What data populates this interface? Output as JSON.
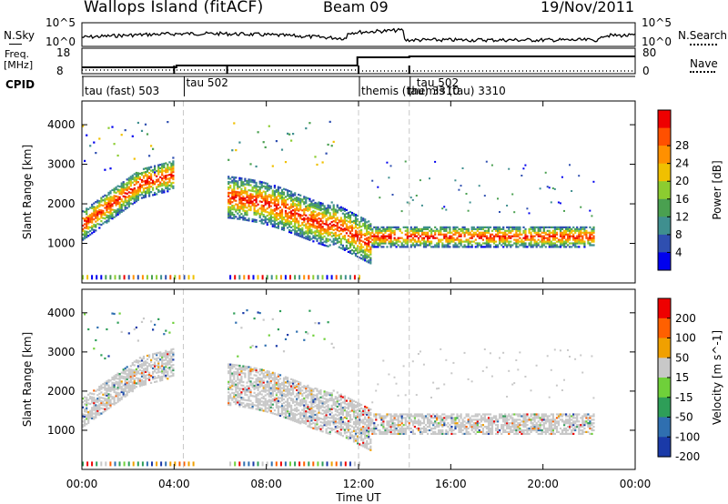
{
  "header": {
    "site": "Wallops Island (fitACF)",
    "beam": "Beam 09",
    "date": "19/Nov/2011"
  },
  "top_panels": {
    "nsky_label": "N.Sky",
    "nsearch_label": "N.Search",
    "noise_ticks": [
      "10^5",
      "10^0"
    ],
    "freq_label_1": "Freq.",
    "freq_label_2": "[MHz]",
    "freq_ticks": [
      "18",
      "8"
    ],
    "nave_ticks": [
      "80",
      "0"
    ],
    "nave_label": "Nave",
    "cpid_label": "CPID",
    "cpid_segments": [
      {
        "label": "tau (fast) 503"
      },
      {
        "label": "tau 502"
      },
      {
        "label": "themis (tau) 3310"
      },
      {
        "label": "tau 502"
      },
      {
        "label": "themis (tau) 3310"
      }
    ]
  },
  "chart_data": [
    {
      "type": "heatmap",
      "name": "power",
      "ylabel": "Slant Range [km]",
      "ylim": [
        0,
        4600
      ],
      "yticks": [
        "1000",
        "2000",
        "3000",
        "4000"
      ],
      "colorbar_label": "Power [dB]",
      "colorbar_ticks": [
        "4",
        "8",
        "12",
        "16",
        "20",
        "24",
        "28"
      ],
      "colors": [
        "#0000ee",
        "#2f4fb0",
        "#3f8f8f",
        "#4aa050",
        "#8ccc30",
        "#f0c000",
        "#ff9000",
        "#ff5000",
        "#ee0000"
      ]
    },
    {
      "type": "heatmap",
      "name": "velocity",
      "ylabel": "Slant Range [km]",
      "ylim": [
        0,
        4600
      ],
      "yticks": [
        "1000",
        "2000",
        "3000",
        "4000"
      ],
      "colorbar_label": "Velocity [m s^-1]",
      "colorbar_ticks": [
        "200",
        "100",
        "50",
        "15",
        "-15",
        "-50",
        "-100",
        "-200"
      ],
      "colors": [
        "#1a3aa8",
        "#2f6fb0",
        "#2e9e58",
        "#6fd03a",
        "#c8c8c8",
        "#f0a000",
        "#ff6000",
        "#ee0000"
      ]
    }
  ],
  "x_axis": {
    "label": "Time UT",
    "ticks": [
      "00:00",
      "04:00",
      "08:00",
      "12:00",
      "16:00",
      "20:00",
      "00:00"
    ],
    "range_hours": [
      0,
      24
    ]
  },
  "colors": {
    "low_quality_band": "#7e7e7e"
  }
}
